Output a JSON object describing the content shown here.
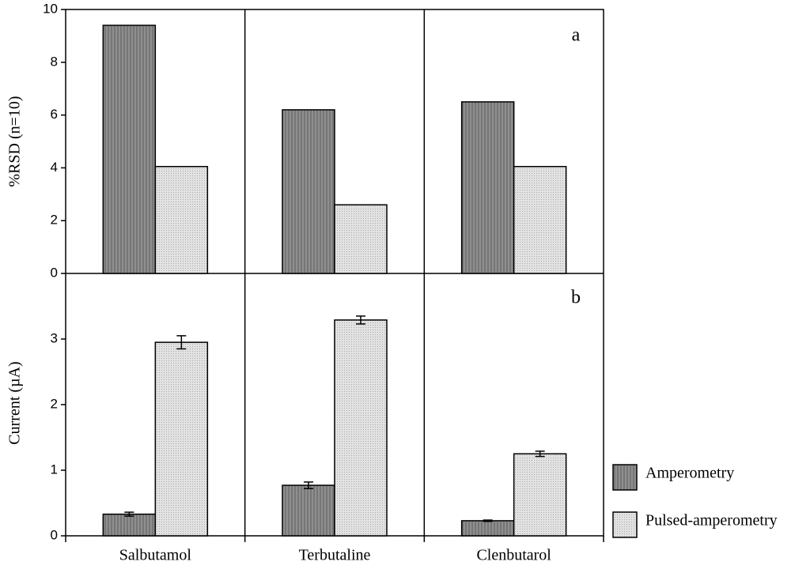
{
  "chart_data": [
    {
      "type": "bar",
      "ylabel": "%RSD (n=10)",
      "panel_label": "a",
      "ylim": [
        0,
        10
      ],
      "yticks": [
        0,
        2,
        4,
        6,
        8,
        10
      ],
      "series": [
        {
          "color": "#8f8f8f",
          "values": [
            9.4,
            6.2,
            6.5
          ]
        },
        {
          "color": "#e2e2e2",
          "values": [
            4.05,
            2.6,
            4.05
          ]
        }
      ]
    },
    {
      "type": "bar",
      "ylabel": "Current (µA)",
      "panel_label": "b",
      "categories": [
        "Salbutamol",
        "Terbutaline",
        "Clenbutarol"
      ],
      "ylim": [
        0,
        4
      ],
      "yticks": [
        0,
        1,
        2,
        3
      ],
      "series": [
        {
          "name": "Amperometry",
          "color": "#8f8f8f",
          "values": [
            0.33,
            0.77,
            0.23
          ],
          "errors": [
            0.03,
            0.05,
            0.01
          ]
        },
        {
          "name": "Pulsed-amperometry",
          "color": "#e2e2e2",
          "values": [
            2.95,
            3.29,
            1.25
          ],
          "errors": [
            0.1,
            0.06,
            0.04
          ]
        }
      ]
    }
  ]
}
